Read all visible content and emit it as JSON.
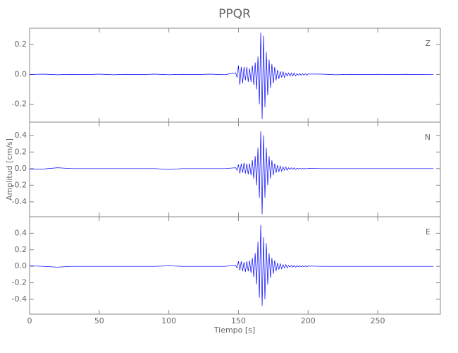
{
  "chart_data": [
    {
      "type": "line",
      "title": "PPQR",
      "label": "Z",
      "color": "#0000ff",
      "x": [
        0,
        10,
        20,
        30,
        40,
        50,
        60,
        70,
        80,
        90,
        100,
        110,
        120,
        130,
        140,
        148,
        149,
        150,
        151,
        152,
        153,
        154,
        155,
        156,
        157,
        158,
        159,
        160,
        161,
        162,
        163,
        164,
        165,
        166,
        167,
        168,
        169,
        170,
        171,
        172,
        173,
        174,
        175,
        176,
        177,
        178,
        179,
        180,
        181,
        182,
        183,
        184,
        185,
        186,
        187,
        188,
        189,
        190,
        191,
        192,
        193,
        194,
        195,
        196,
        197,
        198,
        199,
        200,
        210,
        220,
        230,
        240,
        250,
        260,
        270,
        280,
        290
      ],
      "values": [
        0,
        0.002,
        -0.002,
        0.001,
        -0.001,
        0.002,
        -0.002,
        0.001,
        -0.001,
        0.002,
        -0.002,
        0.001,
        -0.001,
        0.002,
        -0.002,
        0.01,
        -0.02,
        0.06,
        -0.07,
        0.05,
        -0.06,
        0.05,
        -0.04,
        0.05,
        -0.05,
        0.04,
        -0.05,
        0.06,
        -0.07,
        0.08,
        -0.1,
        0.12,
        -0.2,
        0.28,
        -0.3,
        0.26,
        -0.22,
        0.15,
        -0.14,
        0.1,
        -0.09,
        0.07,
        -0.06,
        0.05,
        -0.04,
        0.03,
        -0.03,
        0.02,
        -0.02,
        0.02,
        -0.02,
        0.01,
        -0.01,
        0.01,
        -0.01,
        0.01,
        -0.01,
        0.01,
        -0.01,
        0.005,
        -0.005,
        0.005,
        -0.005,
        0.005,
        -0.005,
        0.005,
        -0.005,
        0.003,
        0.002,
        -0.002,
        0.001,
        -0.001,
        0.001,
        -0.001,
        0.001,
        -0.001,
        0
      ],
      "xlim": [
        0,
        295
      ],
      "ylim": [
        -0.32,
        0.31
      ],
      "yticks": [
        -0.2,
        {
          "value": 0,
          "label": "0.0"
        },
        0.2
      ]
    },
    {
      "type": "line",
      "label": "N",
      "y_label": "Amplitud [cm/s]",
      "color": "#0000ff",
      "x": [
        0,
        10,
        20,
        30,
        40,
        50,
        60,
        70,
        80,
        90,
        100,
        110,
        120,
        130,
        140,
        148,
        149,
        150,
        151,
        152,
        153,
        154,
        155,
        156,
        157,
        158,
        159,
        160,
        161,
        162,
        163,
        164,
        165,
        166,
        167,
        168,
        169,
        170,
        171,
        172,
        173,
        174,
        175,
        176,
        177,
        178,
        179,
        180,
        181,
        182,
        183,
        184,
        185,
        186,
        187,
        188,
        189,
        190,
        191,
        192,
        193,
        194,
        195,
        196,
        197,
        198,
        199,
        200,
        210,
        220,
        230,
        240,
        250,
        260,
        270,
        280,
        290
      ],
      "values": [
        -0.005,
        -0.005,
        0.01,
        0,
        0,
        0,
        0,
        0,
        0,
        0,
        -0.01,
        0,
        0,
        0,
        0,
        0.01,
        -0.02,
        0.05,
        -0.06,
        0.06,
        -0.05,
        0.07,
        -0.06,
        0.06,
        -0.07,
        0.06,
        -0.08,
        0.1,
        -0.12,
        0.15,
        -0.2,
        0.25,
        -0.35,
        0.45,
        -0.55,
        0.4,
        -0.35,
        0.25,
        -0.2,
        0.15,
        -0.12,
        0.1,
        -0.08,
        0.06,
        -0.05,
        0.04,
        -0.04,
        0.03,
        -0.03,
        0.02,
        -0.02,
        0.02,
        -0.02,
        0.01,
        -0.01,
        0.01,
        -0.01,
        0.01,
        -0.01,
        0.005,
        -0.005,
        0.005,
        -0.005,
        0.005,
        -0.005,
        0.005,
        -0.005,
        0.003,
        0,
        0,
        0,
        0,
        0,
        0,
        0,
        0,
        0
      ],
      "xlim": [
        0,
        295
      ],
      "ylim": [
        -0.58,
        0.56
      ],
      "yticks": [
        -0.4,
        -0.2,
        {
          "value": 0,
          "label": "0.0"
        },
        0.2,
        0.4
      ]
    },
    {
      "type": "line",
      "label": "E",
      "x_label": "Tiempo [s]",
      "color": "#0000ff",
      "x": [
        0,
        10,
        20,
        30,
        40,
        50,
        60,
        70,
        80,
        90,
        100,
        110,
        120,
        130,
        140,
        148,
        149,
        150,
        151,
        152,
        153,
        154,
        155,
        156,
        157,
        158,
        159,
        160,
        161,
        162,
        163,
        164,
        165,
        166,
        167,
        168,
        169,
        170,
        171,
        172,
        173,
        174,
        175,
        176,
        177,
        178,
        179,
        180,
        181,
        182,
        183,
        184,
        185,
        186,
        187,
        188,
        189,
        190,
        191,
        192,
        193,
        194,
        195,
        196,
        197,
        198,
        199,
        200,
        210,
        220,
        230,
        240,
        250,
        260,
        270,
        280,
        290
      ],
      "values": [
        0.005,
        0,
        -0.01,
        0,
        0,
        0,
        0,
        0,
        0,
        0,
        0.005,
        0,
        0,
        0,
        0,
        0.01,
        -0.02,
        0.06,
        -0.05,
        0.06,
        -0.06,
        0.05,
        -0.07,
        0.06,
        -0.06,
        0.07,
        -0.08,
        0.1,
        -0.13,
        0.16,
        -0.22,
        0.3,
        -0.38,
        0.5,
        -0.48,
        0.35,
        -0.4,
        0.28,
        -0.22,
        0.16,
        -0.14,
        0.1,
        -0.09,
        0.07,
        -0.06,
        0.04,
        -0.04,
        0.03,
        -0.03,
        0.02,
        -0.02,
        0.02,
        -0.02,
        0.01,
        -0.01,
        0.01,
        -0.01,
        0.01,
        -0.01,
        0.005,
        -0.005,
        0.005,
        -0.005,
        0.005,
        -0.005,
        0.005,
        -0.005,
        0.003,
        0,
        0,
        0,
        0,
        0,
        0,
        0,
        0,
        0
      ],
      "xlim": [
        0,
        295
      ],
      "ylim": [
        -0.58,
        0.6
      ],
      "yticks": [
        -0.4,
        -0.2,
        {
          "value": 0,
          "label": "0.0"
        },
        0.2,
        0.4
      ],
      "xticks": [
        0,
        50,
        100,
        150,
        200,
        250
      ]
    }
  ]
}
